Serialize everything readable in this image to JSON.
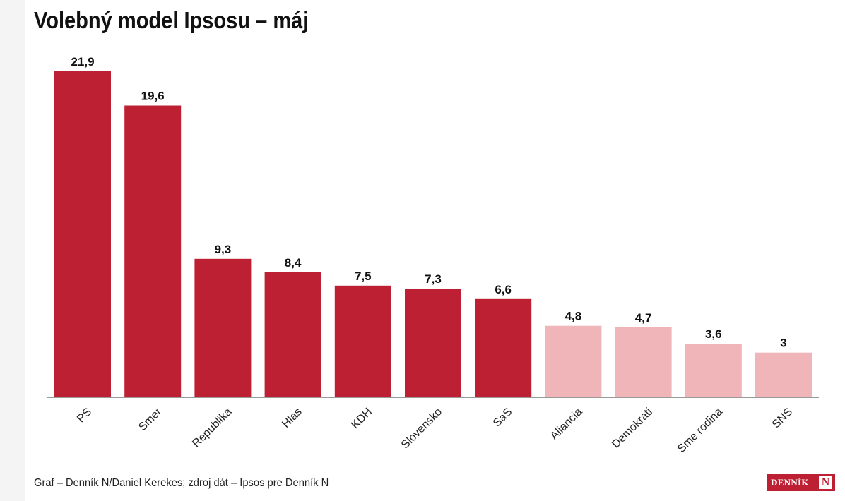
{
  "page": {
    "title": "Volebný model Ipsosu – máj",
    "footer": "Graf – Denník N/Daniel Kerekes; zdroj dát – Ipsos pre Denník N",
    "logo_text": "DENNÍK",
    "logo_mark": "N"
  },
  "colors": {
    "primary": "#be2033",
    "secondary": "#efb5b8",
    "axis": "#333333"
  },
  "chart_data": {
    "type": "bar",
    "title": "Volebný model Ipsosu – máj",
    "xlabel": "",
    "ylabel": "",
    "ylim": [
      0,
      21.9
    ],
    "grid": false,
    "legend": "none",
    "categories": [
      "PS",
      "Smer",
      "Republika",
      "Hlas",
      "KDH",
      "Slovensko",
      "SaS",
      "Aliancia",
      "Demokrati",
      "Sme rodina",
      "SNS"
    ],
    "values": [
      21.9,
      19.6,
      9.3,
      8.4,
      7.5,
      7.3,
      6.6,
      4.8,
      4.7,
      3.6,
      3
    ],
    "value_labels": [
      "21,9",
      "19,6",
      "9,3",
      "8,4",
      "7,5",
      "7,3",
      "6,6",
      "4,8",
      "4,7",
      "3,6",
      "3"
    ],
    "highlighted": [
      true,
      true,
      true,
      true,
      true,
      true,
      true,
      false,
      false,
      false,
      false
    ]
  }
}
